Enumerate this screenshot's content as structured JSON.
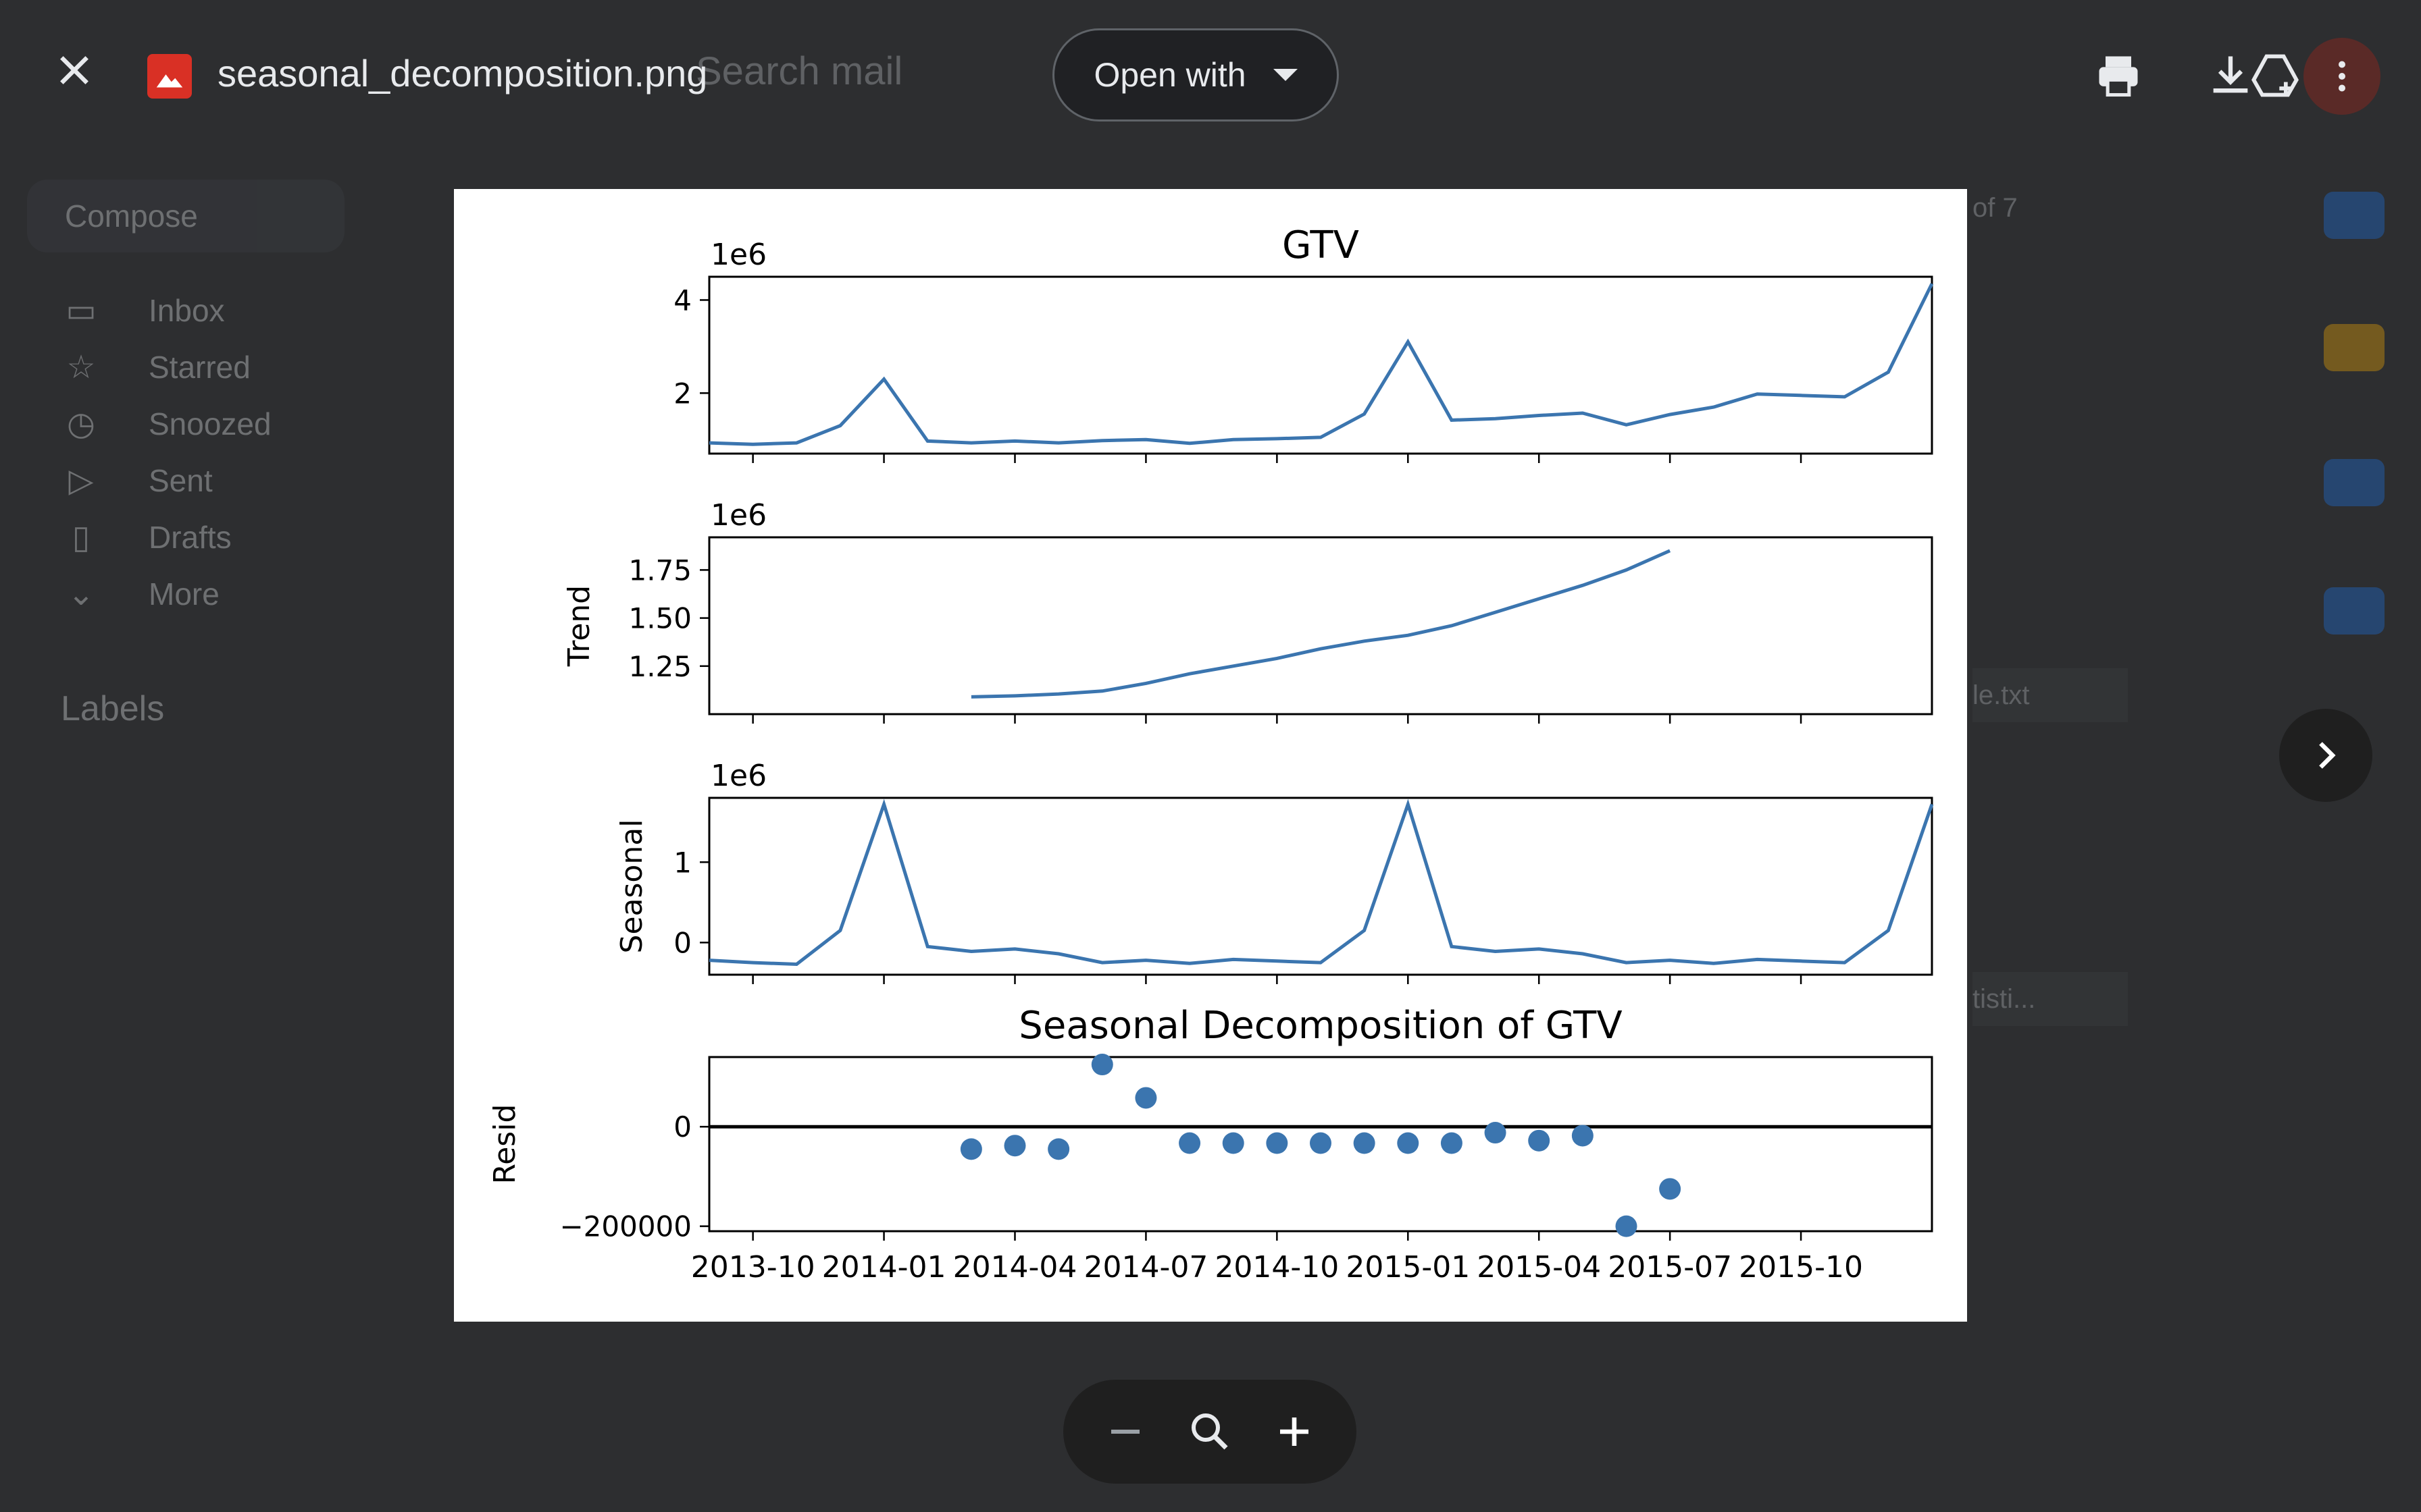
{
  "viewer": {
    "file_name": "seasonal_decomposition.png",
    "open_with_label": "Open with"
  },
  "background": {
    "search_placeholder": "Search mail",
    "compose_label": "Compose",
    "nav": [
      "Inbox",
      "Starred",
      "Snoozed",
      "Sent",
      "Drafts",
      "More"
    ],
    "labels_heading": "Labels",
    "pager": "of 7",
    "attachment_1": "le.txt",
    "attachment_2": "tisti..."
  },
  "chart_data": [
    {
      "type": "line",
      "title": "GTV",
      "scale_label": "1e6",
      "ylabel": "",
      "yticks": [
        "2",
        "4"
      ],
      "series": [
        {
          "values": [
            0.93,
            0.9,
            0.93,
            1.3,
            2.3,
            0.97,
            0.93,
            0.97,
            0.93,
            0.98,
            1.0,
            0.92,
            1.0,
            1.02,
            1.05,
            1.55,
            3.1,
            1.42,
            1.45,
            1.52,
            1.57,
            1.32,
            1.54,
            1.7,
            1.98,
            1.95,
            1.92,
            2.45,
            4.35
          ]
        }
      ]
    },
    {
      "type": "line",
      "title": "",
      "scale_label": "1e6",
      "ylabel": "Trend",
      "yticks": [
        "1.25",
        "1.50",
        "1.75"
      ],
      "series": [
        {
          "values": [
            null,
            null,
            null,
            null,
            null,
            null,
            1.09,
            1.095,
            1.105,
            1.12,
            1.16,
            1.21,
            1.25,
            1.29,
            1.34,
            1.38,
            1.41,
            1.46,
            1.53,
            1.6,
            1.67,
            1.75,
            1.85,
            null,
            null,
            null,
            null,
            null,
            null
          ]
        }
      ]
    },
    {
      "type": "line",
      "title": "",
      "scale_label": "1e6",
      "ylabel": "Seasonal",
      "yticks": [
        "0",
        "1"
      ],
      "series": [
        {
          "values": [
            -0.22,
            -0.25,
            -0.27,
            0.15,
            1.72,
            -0.05,
            -0.11,
            -0.08,
            -0.14,
            -0.25,
            -0.22,
            -0.26,
            -0.21,
            -0.23,
            -0.25,
            0.15,
            1.72,
            -0.05,
            -0.11,
            -0.08,
            -0.14,
            -0.25,
            -0.22,
            -0.26,
            -0.21,
            -0.23,
            -0.25,
            0.15,
            1.72
          ]
        }
      ]
    },
    {
      "type": "scatter",
      "title": "Seasonal Decomposition of GTV",
      "ylabel": "Resid",
      "yticks": [
        "−200000",
        "0"
      ],
      "xticks": [
        "2013-10",
        "2014-01",
        "2014-04",
        "2014-07",
        "2014-10",
        "2015-01",
        "2015-04",
        "2015-07",
        "2015-10"
      ],
      "series": [
        {
          "values": [
            null,
            null,
            null,
            null,
            null,
            null,
            -45000,
            -38000,
            -45000,
            125000,
            58000,
            -33000,
            -33000,
            -33000,
            -33000,
            -33000,
            -33000,
            -33000,
            -12000,
            -28000,
            -18000,
            -200000,
            -125000,
            null,
            null,
            null,
            null,
            null,
            null
          ]
        }
      ]
    }
  ]
}
